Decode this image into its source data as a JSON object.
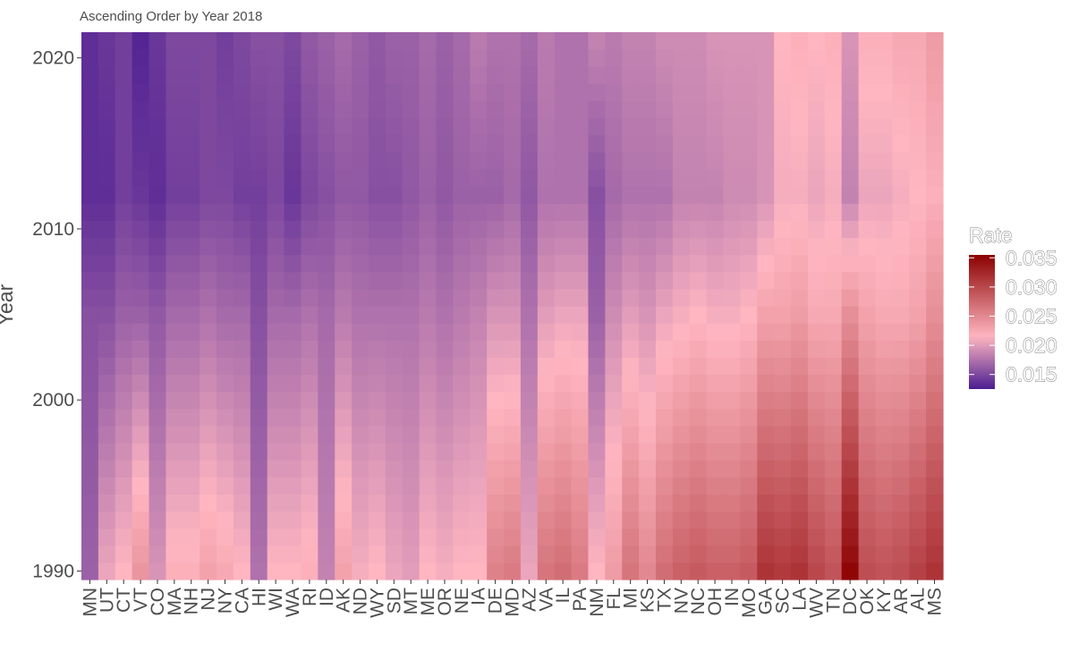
{
  "chart_data": {
    "type": "heatmap",
    "title": "Ascending Order by Year 2018",
    "xlabel": "",
    "ylabel": "Year",
    "x_categories": [
      "MN",
      "UT",
      "CT",
      "VT",
      "CO",
      "MA",
      "NH",
      "NJ",
      "NY",
      "CA",
      "HI",
      "WI",
      "WA",
      "RI",
      "ID",
      "AK",
      "ND",
      "WY",
      "SD",
      "MT",
      "ME",
      "OR",
      "NE",
      "IA",
      "DE",
      "MD",
      "AZ",
      "VA",
      "IL",
      "PA",
      "NM",
      "FL",
      "MI",
      "KS",
      "TX",
      "NV",
      "NC",
      "OH",
      "IN",
      "MO",
      "GA",
      "SC",
      "LA",
      "WV",
      "TN",
      "DC",
      "OK",
      "KY",
      "AR",
      "AL",
      "MS"
    ],
    "y_range": [
      1990,
      2021
    ],
    "y_ticks": [
      1990,
      2000,
      2010,
      2020
    ],
    "legend": {
      "title": "Rate",
      "ticks": [
        0.015,
        0.02,
        0.025,
        0.03,
        0.035
      ],
      "tick_labels": [
        "0.015",
        "0.020",
        "0.025",
        "0.030",
        "0.035"
      ],
      "range": [
        0.0125,
        0.0355
      ],
      "colors": [
        "#4b1d91",
        "#ffb6c1",
        "#8b0000"
      ],
      "placement": "right"
    },
    "values_1990": [
      0.0165,
      0.0205,
      0.0215,
      0.024,
      0.0195,
      0.022,
      0.022,
      0.023,
      0.0225,
      0.0215,
      0.0175,
      0.0215,
      0.0215,
      0.022,
      0.0185,
      0.023,
      0.021,
      0.0215,
      0.0205,
      0.02,
      0.0215,
      0.021,
      0.0215,
      0.0215,
      0.0255,
      0.026,
      0.0205,
      0.0265,
      0.027,
      0.026,
      0.0215,
      0.0235,
      0.0265,
      0.025,
      0.027,
      0.028,
      0.0285,
      0.028,
      0.028,
      0.0285,
      0.0315,
      0.031,
      0.0315,
      0.03,
      0.029,
      0.035,
      0.0295,
      0.029,
      0.0295,
      0.0305,
      0.0315
    ],
    "values_2005": [
      0.0155,
      0.0155,
      0.0165,
      0.0165,
      0.016,
      0.017,
      0.017,
      0.0175,
      0.017,
      0.017,
      0.0155,
      0.017,
      0.017,
      0.0175,
      0.017,
      0.018,
      0.0175,
      0.0175,
      0.0175,
      0.0175,
      0.018,
      0.0175,
      0.018,
      0.0185,
      0.0195,
      0.0195,
      0.0175,
      0.02,
      0.0205,
      0.0205,
      0.0165,
      0.019,
      0.02,
      0.0195,
      0.0205,
      0.021,
      0.0215,
      0.021,
      0.021,
      0.0215,
      0.023,
      0.023,
      0.0235,
      0.0225,
      0.0225,
      0.0245,
      0.023,
      0.0225,
      0.0225,
      0.023,
      0.0245
    ],
    "values_2012": [
      0.0135,
      0.0135,
      0.0145,
      0.014,
      0.0135,
      0.0145,
      0.0145,
      0.015,
      0.015,
      0.0145,
      0.0145,
      0.015,
      0.014,
      0.015,
      0.0155,
      0.016,
      0.016,
      0.0155,
      0.0155,
      0.016,
      0.0165,
      0.016,
      0.0165,
      0.0165,
      0.0165,
      0.017,
      0.016,
      0.0175,
      0.0175,
      0.0175,
      0.0155,
      0.017,
      0.0175,
      0.0175,
      0.0175,
      0.0185,
      0.0185,
      0.0185,
      0.019,
      0.019,
      0.0195,
      0.021,
      0.021,
      0.0205,
      0.021,
      0.0185,
      0.0205,
      0.0205,
      0.021,
      0.0215,
      0.022
    ],
    "values_2021": [
      0.0135,
      0.014,
      0.0145,
      0.013,
      0.014,
      0.015,
      0.015,
      0.015,
      0.0145,
      0.015,
      0.0155,
      0.0155,
      0.015,
      0.016,
      0.0165,
      0.017,
      0.0165,
      0.016,
      0.0165,
      0.0165,
      0.017,
      0.0165,
      0.017,
      0.018,
      0.0175,
      0.0175,
      0.017,
      0.018,
      0.0175,
      0.0175,
      0.0185,
      0.018,
      0.0185,
      0.0185,
      0.019,
      0.019,
      0.019,
      0.0195,
      0.0195,
      0.0195,
      0.0195,
      0.0215,
      0.022,
      0.0215,
      0.022,
      0.0195,
      0.022,
      0.022,
      0.0225,
      0.0225,
      0.0235
    ]
  }
}
